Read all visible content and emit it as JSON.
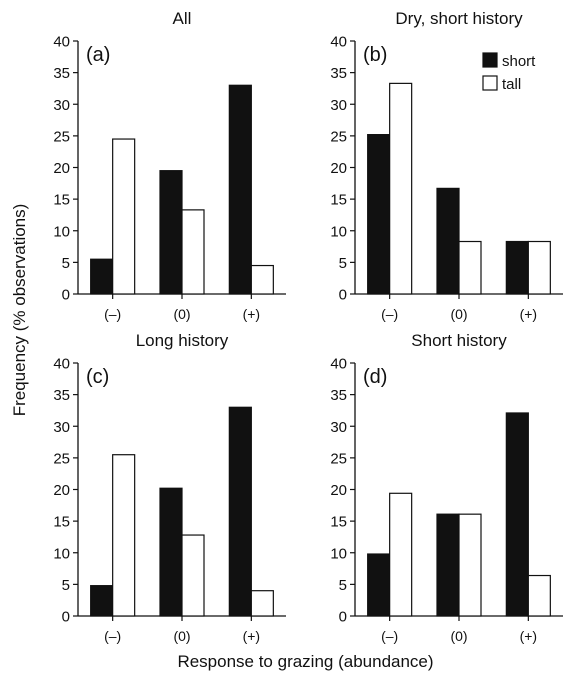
{
  "figure": {
    "ylabel": "Frequency (% observations)",
    "xlabel": "Response to grazing (abundance)"
  },
  "chart_data": [
    {
      "type": "bar",
      "panel": "(a)",
      "title": "All",
      "categories": [
        "(–)",
        "(0)",
        "(+)"
      ],
      "series": [
        {
          "name": "short",
          "values": [
            5.5,
            19.5,
            33
          ]
        },
        {
          "name": "tall",
          "values": [
            24.5,
            13.3,
            4.5
          ]
        }
      ],
      "ylim": [
        0,
        40
      ],
      "yticks": [
        0,
        5,
        10,
        15,
        20,
        25,
        30,
        35,
        40
      ],
      "legend": false
    },
    {
      "type": "bar",
      "panel": "(b)",
      "title": "Dry, short history",
      "categories": [
        "(–)",
        "(0)",
        "(+)"
      ],
      "series": [
        {
          "name": "short",
          "values": [
            25.2,
            16.7,
            8.3
          ]
        },
        {
          "name": "tall",
          "values": [
            33.3,
            8.3,
            8.3
          ]
        }
      ],
      "ylim": [
        0,
        40
      ],
      "yticks": [
        0,
        5,
        10,
        15,
        20,
        25,
        30,
        35,
        40
      ],
      "legend": true,
      "legend_position": "top-right"
    },
    {
      "type": "bar",
      "panel": "(c)",
      "title": "Long history",
      "categories": [
        "(–)",
        "(0)",
        "(+)"
      ],
      "series": [
        {
          "name": "short",
          "values": [
            4.8,
            20.2,
            33
          ]
        },
        {
          "name": "tall",
          "values": [
            25.5,
            12.8,
            4
          ]
        }
      ],
      "ylim": [
        0,
        40
      ],
      "yticks": [
        0,
        5,
        10,
        15,
        20,
        25,
        30,
        35,
        40
      ],
      "legend": false
    },
    {
      "type": "bar",
      "panel": "(d)",
      "title": "Short history",
      "categories": [
        "(–)",
        "(0)",
        "(+)"
      ],
      "series": [
        {
          "name": "short",
          "values": [
            9.8,
            16.1,
            32.1
          ]
        },
        {
          "name": "tall",
          "values": [
            19.4,
            16.1,
            6.4
          ]
        }
      ],
      "ylim": [
        0,
        40
      ],
      "yticks": [
        0,
        5,
        10,
        15,
        20,
        25,
        30,
        35,
        40
      ],
      "legend": false
    }
  ]
}
